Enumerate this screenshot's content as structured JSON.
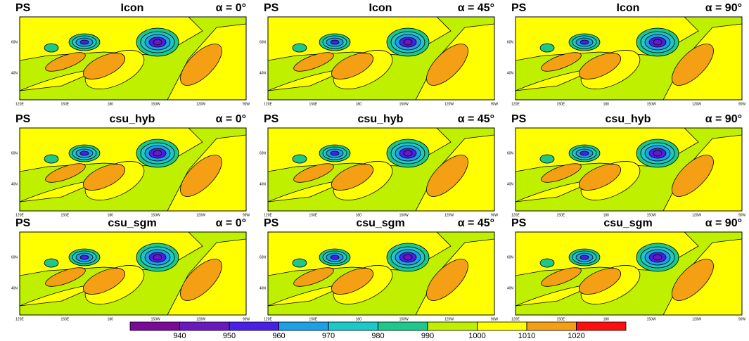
{
  "chart_data": {
    "type": "contour-map",
    "panels": [
      {
        "left": "PS",
        "title": "Icon",
        "right": "α = 0°"
      },
      {
        "left": "PS",
        "title": "Icon",
        "right": "α = 45°"
      },
      {
        "left": "PS",
        "title": "Icon",
        "right": "α = 90°"
      },
      {
        "left": "PS",
        "title": "csu_hyb",
        "right": "α = 0°"
      },
      {
        "left": "PS",
        "title": "csu_hyb",
        "right": "α = 45°"
      },
      {
        "left": "PS",
        "title": "csu_hyb",
        "right": "α = 90°"
      },
      {
        "left": "PS",
        "title": "csu_sgm",
        "right": "α = 0°"
      },
      {
        "left": "PS",
        "title": "csu_sgm",
        "right": "α = 45°"
      },
      {
        "left": "PS",
        "title": "csu_sgm",
        "right": "α = 90°"
      }
    ],
    "x_tick_labels": [
      "120E",
      "150E",
      "180",
      "150W",
      "120W",
      "90W"
    ],
    "y_tick_labels": [
      "40N",
      "60N"
    ],
    "colorbar": {
      "levels": [
        940,
        950,
        960,
        970,
        980,
        990,
        1000,
        1010,
        1020
      ],
      "colors": [
        "#7a0a9a",
        "#6a18c0",
        "#4a20e6",
        "#1ea0e6",
        "#1ec8c8",
        "#1ec88c",
        "#bff000",
        "#ffff00",
        "#f5a014",
        "#ff1010"
      ]
    }
  }
}
